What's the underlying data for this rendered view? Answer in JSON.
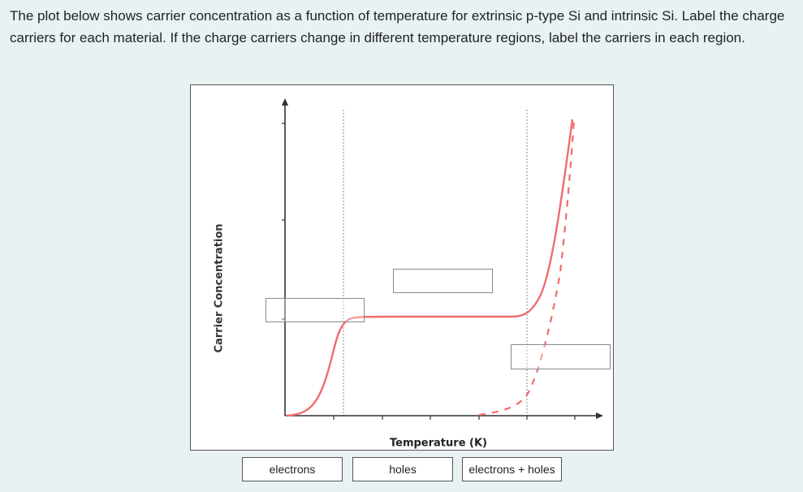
{
  "question": {
    "text": "The plot below shows carrier concentration as a function of temperature for extrinsic p-type Si and intrinsic Si. Label the charge carriers for each material. If the charge carriers change in different temperature regions, label the carriers in each region."
  },
  "plot": {
    "y_axis_label": "Carrier Concentration",
    "x_axis_label": "Temperature (K)",
    "colors": {
      "curve": "#f06d6d",
      "axis": "#333333",
      "guide": "#888888"
    }
  },
  "drop_zones": [
    {
      "name": "drop-zone-low-temp",
      "value": ""
    },
    {
      "name": "drop-zone-plateau",
      "value": ""
    },
    {
      "name": "drop-zone-intrinsic",
      "value": ""
    }
  ],
  "answer_choices": [
    {
      "label": "electrons"
    },
    {
      "label": "holes"
    },
    {
      "label": "electrons + holes"
    }
  ]
}
